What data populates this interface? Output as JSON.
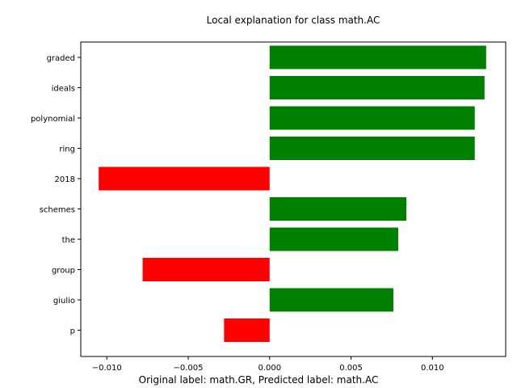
{
  "chart_data": {
    "type": "bar",
    "orientation": "horizontal",
    "title": "Local explanation for class math.AC",
    "caption": "Original label: math.GR, Predicted label: math.AC",
    "xlabel": "",
    "ylabel": "",
    "xlim": [
      -0.0116,
      0.0145
    ],
    "xticks": [
      -0.01,
      -0.005,
      0.0,
      0.005,
      0.01
    ],
    "xtick_labels": [
      "−0.010",
      "−0.005",
      "0.000",
      "0.005",
      "0.010"
    ],
    "categories": [
      "graded",
      "ideals",
      "polynomial",
      "ring",
      "2018",
      "schemes",
      "the",
      "group",
      "giulio",
      "p"
    ],
    "values": [
      0.0133,
      0.0132,
      0.0126,
      0.0126,
      -0.0105,
      0.0084,
      0.0079,
      -0.0078,
      0.0076,
      -0.0028
    ],
    "colors": {
      "positive": "#008000",
      "negative": "#ff0000"
    },
    "grid": false,
    "legend": "none"
  }
}
